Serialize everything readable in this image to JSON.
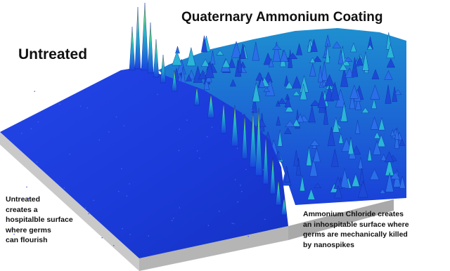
{
  "labels": {
    "untreated_title": "Untreated",
    "coating_title": "Quaternary Ammonium Coating"
  },
  "descriptions": {
    "untreated_lines": [
      "Untreated",
      "creates a",
      "hospitalble surface",
      "where germs",
      "can flourish"
    ],
    "coating_lines": [
      "Ammonium Chloride creates",
      "an inhospitable surface where",
      "germs are mechanically killed",
      "by nanospikes"
    ]
  },
  "colors": {
    "flat_surface": "#1a3ad8",
    "spike_low": "#1a44e0",
    "spike_mid": "#22b6c8",
    "spike_high": "#d6e23a",
    "slab_side": "#c9c9c9",
    "text": "#111111"
  }
}
